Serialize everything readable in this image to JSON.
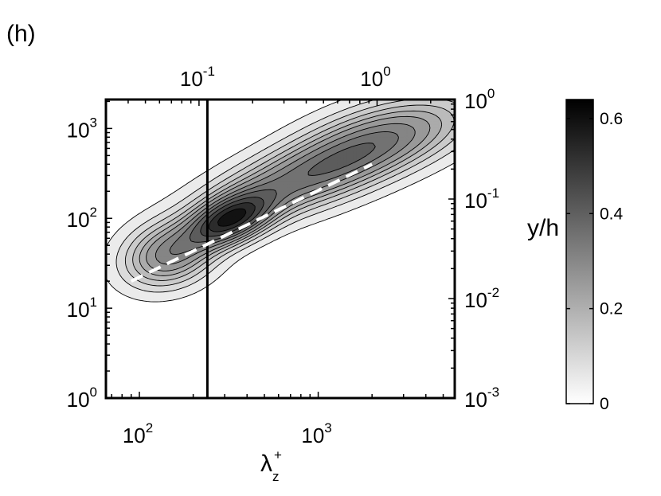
{
  "panel_label": "(h)",
  "chart_data": {
    "type": "contour",
    "xlabel": "λ",
    "xlabel_sub": "z",
    "xlabel_sup": "+",
    "ylabel_right": "y/h",
    "x_scale": "log",
    "y_scale": "log",
    "xlim": [
      65,
      5800
    ],
    "ylim": [
      1,
      2100
    ],
    "top_xlim": [
      0.03,
      2.73
    ],
    "right_ylim": [
      0.001,
      1
    ],
    "x_ticks": [
      {
        "base": "10",
        "exp": "2",
        "value": 100
      },
      {
        "base": "10",
        "exp": "3",
        "value": 1000
      }
    ],
    "y_ticks": [
      {
        "base": "10",
        "exp": "0",
        "value": 1
      },
      {
        "base": "10",
        "exp": "1",
        "value": 10
      },
      {
        "base": "10",
        "exp": "2",
        "value": 100
      },
      {
        "base": "10",
        "exp": "3",
        "value": 1000
      }
    ],
    "top_ticks": [
      {
        "base": "10",
        "exp": "-1",
        "value": 0.1
      },
      {
        "base": "10",
        "exp": "0",
        "value": 1
      }
    ],
    "right_ticks": [
      {
        "base": "10",
        "exp": "0",
        "value": 1
      },
      {
        "base": "10",
        "exp": "-1",
        "value": 0.1
      },
      {
        "base": "10",
        "exp": "-2",
        "value": 0.01
      },
      {
        "base": "10",
        "exp": "-3",
        "value": 0.001
      }
    ],
    "vertical_line_x": 240,
    "dashed_line": [
      [
        90,
        20
      ],
      [
        2000,
        400
      ]
    ],
    "colorbar": {
      "ticks": [
        "0",
        "0.2",
        "0.4",
        "0.6"
      ],
      "tick_values": [
        0,
        0.2,
        0.4,
        0.6
      ],
      "range": [
        0,
        0.64
      ],
      "low_color": "#ffffff",
      "high_color": "#000000"
    },
    "levels": [
      0.03,
      0.07,
      0.11,
      0.15,
      0.19,
      0.23,
      0.28,
      0.33,
      0.38,
      0.44,
      0.5,
      0.56
    ],
    "peaks": [
      {
        "x": 145,
        "y": 38,
        "amplitude": 0.28,
        "sigma_x": 0.17,
        "sigma_y": 0.24,
        "rho": 0.2
      },
      {
        "x": 320,
        "y": 95,
        "amplitude": 0.46,
        "sigma_x": 0.16,
        "sigma_y": 0.2,
        "rho": 0.5
      },
      {
        "x": 900,
        "y": 300,
        "amplitude": 0.33,
        "sigma_x": 0.4,
        "sigma_y": 0.36,
        "rho": 0.72
      },
      {
        "x": 2500,
        "y": 900,
        "amplitude": 0.2,
        "sigma_x": 0.33,
        "sigma_y": 0.3,
        "rho": 0.5
      }
    ]
  }
}
